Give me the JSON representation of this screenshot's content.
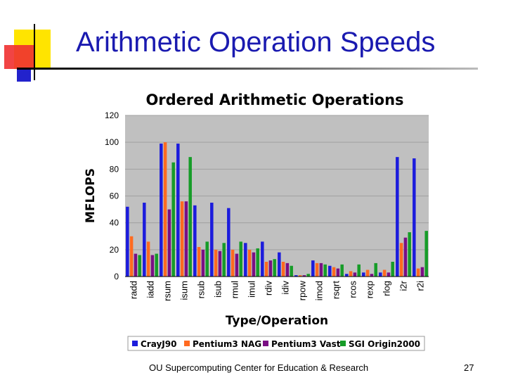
{
  "slide": {
    "title": "Arithmetic Operation Speeds",
    "footer": "OU Supercomputing Center for Education & Research",
    "page_number": "27"
  },
  "colors": {
    "plot_bg": "#c0c0c0",
    "title_blue": "#1a1ab0",
    "deco_yellow": "#ffe400",
    "deco_red": "#f03030",
    "deco_blue": "#2222cc"
  },
  "chart_data": {
    "type": "bar",
    "title": "Ordered Arithmetic Operations",
    "xlabel": "Type/Operation",
    "ylabel": "MFLOPS",
    "ylim": [
      0,
      120
    ],
    "yticks": [
      0,
      20,
      40,
      60,
      80,
      100,
      120
    ],
    "grid": true,
    "legend_position": "bottom",
    "categories": [
      "radd",
      "iadd",
      "rsum",
      "isum",
      "rsub",
      "isub",
      "rmul",
      "imul",
      "rdiv",
      "idiv",
      "rpow",
      "imod",
      "rsqrt",
      "rcos",
      "rexp",
      "rlog",
      "i2r",
      "r2i"
    ],
    "series": [
      {
        "name": "CrayJ90",
        "color": "#1c1cdc",
        "values": [
          52,
          55,
          99,
          99,
          53,
          55,
          51,
          25,
          26,
          18,
          1,
          12,
          8,
          2,
          3,
          3,
          89,
          88
        ]
      },
      {
        "name": "Pentium3 NAG",
        "color": "#ff6a20",
        "values": [
          30,
          26,
          100,
          56,
          22,
          20,
          20,
          20,
          11,
          11,
          1,
          10,
          7,
          4,
          5,
          5,
          25,
          6
        ]
      },
      {
        "name": "Pentium3 Vast",
        "color": "#7a0f84",
        "values": [
          17,
          16,
          50,
          56,
          20,
          19,
          17,
          18,
          12,
          10,
          1,
          10,
          6,
          3,
          2,
          3,
          29,
          7
        ]
      },
      {
        "name": "SGI Origin2000",
        "color": "#169c28",
        "values": [
          16,
          17,
          85,
          89,
          26,
          25,
          26,
          21,
          13,
          8,
          2,
          9,
          9,
          9,
          10,
          11,
          33,
          34
        ]
      }
    ]
  }
}
